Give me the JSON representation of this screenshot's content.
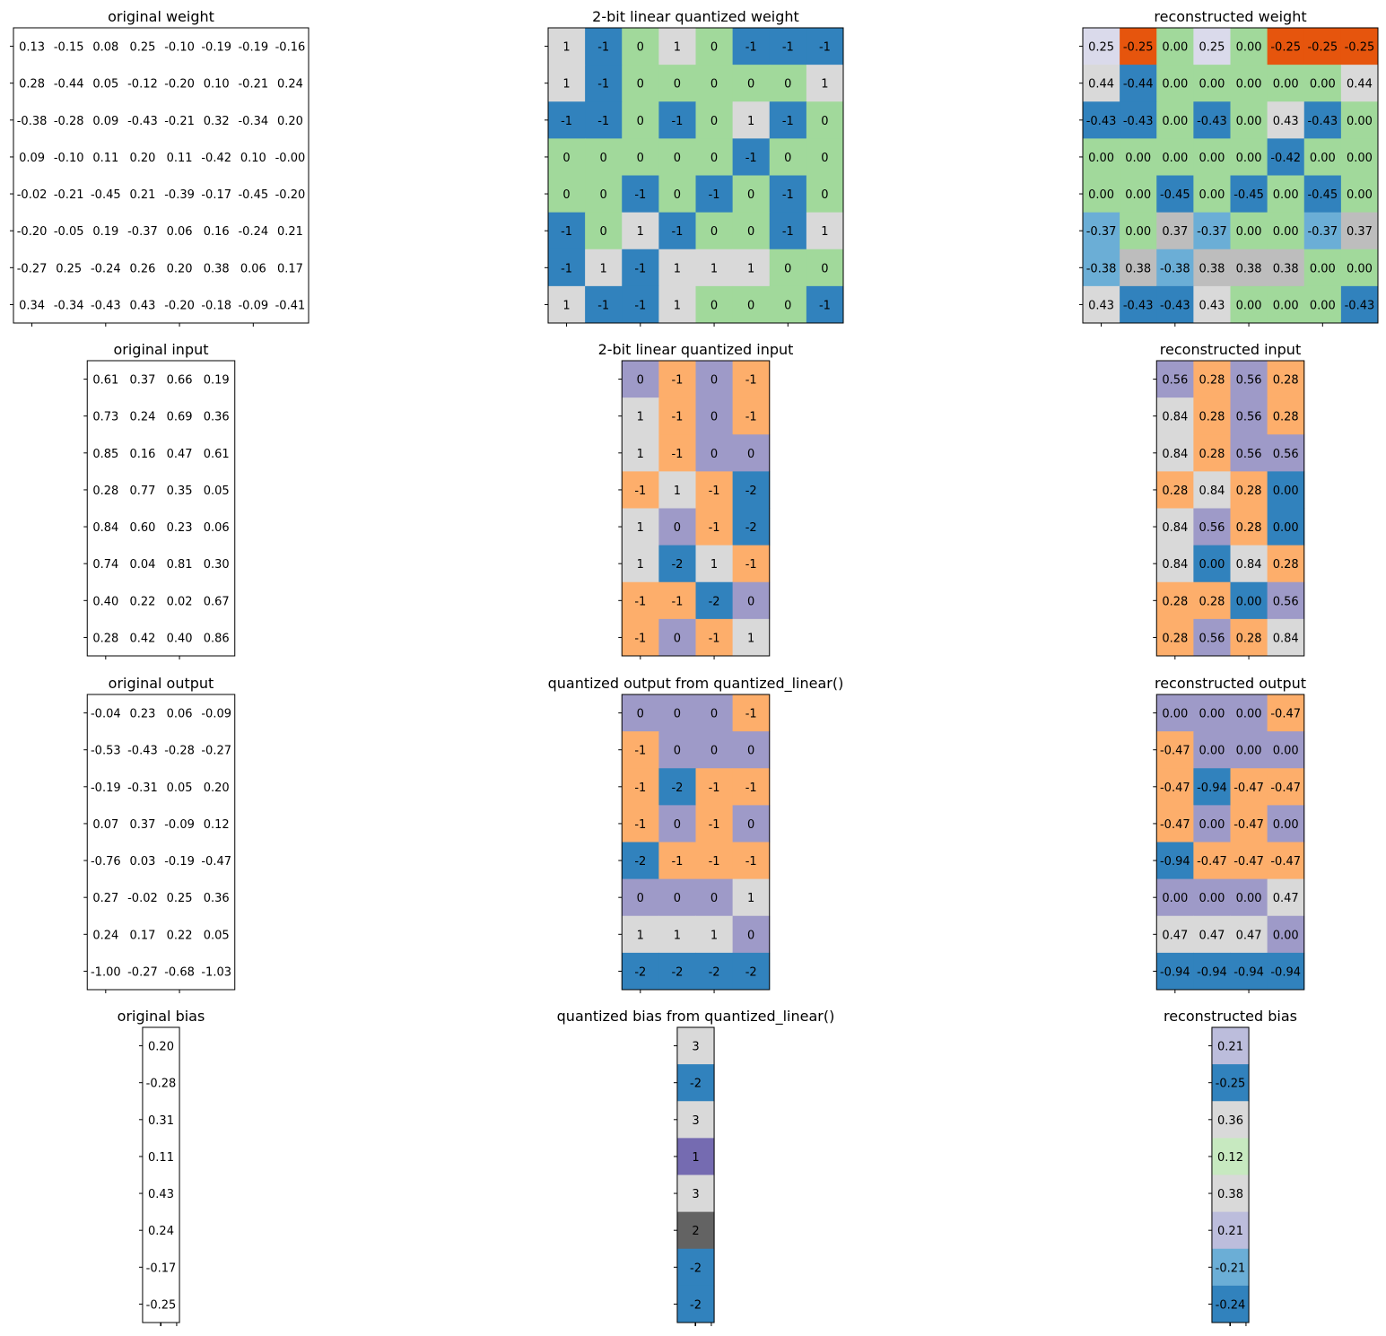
{
  "chart_data": [
    {
      "type": "heatmap",
      "id": "original-weight",
      "title": "original weight",
      "colored": false,
      "values": [
        [
          "0.13",
          "-0.15",
          "0.08",
          "0.25",
          "-0.10",
          "-0.19",
          "-0.19",
          "-0.16"
        ],
        [
          "0.28",
          "-0.44",
          "0.05",
          "-0.12",
          "-0.20",
          "0.10",
          "-0.21",
          "0.24"
        ],
        [
          "-0.38",
          "-0.28",
          "0.09",
          "-0.43",
          "-0.21",
          "0.32",
          "-0.34",
          "0.20"
        ],
        [
          "0.09",
          "-0.10",
          "0.11",
          "0.20",
          "0.11",
          "-0.42",
          "0.10",
          "-0.00"
        ],
        [
          "-0.02",
          "-0.21",
          "-0.45",
          "0.21",
          "-0.39",
          "-0.17",
          "-0.45",
          "-0.20"
        ],
        [
          "-0.20",
          "-0.05",
          "0.19",
          "-0.37",
          "0.06",
          "0.16",
          "-0.24",
          "0.21"
        ],
        [
          "-0.27",
          "0.25",
          "-0.24",
          "0.26",
          "0.20",
          "0.38",
          "0.06",
          "0.17"
        ],
        [
          "0.34",
          "-0.34",
          "-0.43",
          "0.43",
          "-0.20",
          "-0.18",
          "-0.09",
          "-0.41"
        ]
      ]
    },
    {
      "type": "heatmap",
      "id": "quantized-weight",
      "title": "2-bit linear quantized weight",
      "colored": true,
      "values": [
        [
          "1",
          "-1",
          "0",
          "1",
          "0",
          "-1",
          "-1",
          "-1"
        ],
        [
          "1",
          "-1",
          "0",
          "0",
          "0",
          "0",
          "0",
          "1"
        ],
        [
          "-1",
          "-1",
          "0",
          "-1",
          "0",
          "1",
          "-1",
          "0"
        ],
        [
          "0",
          "0",
          "0",
          "0",
          "0",
          "-1",
          "0",
          "0"
        ],
        [
          "0",
          "0",
          "-1",
          "0",
          "-1",
          "0",
          "-1",
          "0"
        ],
        [
          "-1",
          "0",
          "1",
          "-1",
          "0",
          "0",
          "-1",
          "1"
        ],
        [
          "-1",
          "1",
          "-1",
          "1",
          "1",
          "1",
          "0",
          "0"
        ],
        [
          "1",
          "-1",
          "-1",
          "1",
          "0",
          "0",
          "0",
          "-1"
        ]
      ]
    },
    {
      "type": "heatmap",
      "id": "reconstructed-weight",
      "title": "reconstructed weight",
      "colored": true,
      "values": [
        [
          "0.25",
          "-0.25",
          "0.00",
          "0.25",
          "0.00",
          "-0.25",
          "-0.25",
          "-0.25"
        ],
        [
          "0.44",
          "-0.44",
          "0.00",
          "0.00",
          "0.00",
          "0.00",
          "0.00",
          "0.44"
        ],
        [
          "-0.43",
          "-0.43",
          "0.00",
          "-0.43",
          "0.00",
          "0.43",
          "-0.43",
          "0.00"
        ],
        [
          "0.00",
          "0.00",
          "0.00",
          "0.00",
          "0.00",
          "-0.42",
          "0.00",
          "0.00"
        ],
        [
          "0.00",
          "0.00",
          "-0.45",
          "0.00",
          "-0.45",
          "0.00",
          "-0.45",
          "0.00"
        ],
        [
          "-0.37",
          "0.00",
          "0.37",
          "-0.37",
          "0.00",
          "0.00",
          "-0.37",
          "0.37"
        ],
        [
          "-0.38",
          "0.38",
          "-0.38",
          "0.38",
          "0.38",
          "0.38",
          "0.00",
          "0.00"
        ],
        [
          "0.43",
          "-0.43",
          "-0.43",
          "0.43",
          "0.00",
          "0.00",
          "0.00",
          "-0.43"
        ]
      ]
    },
    {
      "type": "heatmap",
      "id": "original-input",
      "title": "original input",
      "colored": false,
      "values": [
        [
          "0.61",
          "0.37",
          "0.66",
          "0.19"
        ],
        [
          "0.73",
          "0.24",
          "0.69",
          "0.36"
        ],
        [
          "0.85",
          "0.16",
          "0.47",
          "0.61"
        ],
        [
          "0.28",
          "0.77",
          "0.35",
          "0.05"
        ],
        [
          "0.84",
          "0.60",
          "0.23",
          "0.06"
        ],
        [
          "0.74",
          "0.04",
          "0.81",
          "0.30"
        ],
        [
          "0.40",
          "0.22",
          "0.02",
          "0.67"
        ],
        [
          "0.28",
          "0.42",
          "0.40",
          "0.86"
        ]
      ]
    },
    {
      "type": "heatmap",
      "id": "quantized-input",
      "title": "2-bit linear quantized input",
      "colored": true,
      "values": [
        [
          "0",
          "-1",
          "0",
          "-1"
        ],
        [
          "1",
          "-1",
          "0",
          "-1"
        ],
        [
          "1",
          "-1",
          "0",
          "0"
        ],
        [
          "-1",
          "1",
          "-1",
          "-2"
        ],
        [
          "1",
          "0",
          "-1",
          "-2"
        ],
        [
          "1",
          "-2",
          "1",
          "-1"
        ],
        [
          "-1",
          "-1",
          "-2",
          "0"
        ],
        [
          "-1",
          "0",
          "-1",
          "1"
        ]
      ]
    },
    {
      "type": "heatmap",
      "id": "reconstructed-input",
      "title": "reconstructed input",
      "colored": true,
      "values": [
        [
          "0.56",
          "0.28",
          "0.56",
          "0.28"
        ],
        [
          "0.84",
          "0.28",
          "0.56",
          "0.28"
        ],
        [
          "0.84",
          "0.28",
          "0.56",
          "0.56"
        ],
        [
          "0.28",
          "0.84",
          "0.28",
          "0.00"
        ],
        [
          "0.84",
          "0.56",
          "0.28",
          "0.00"
        ],
        [
          "0.84",
          "0.00",
          "0.84",
          "0.28"
        ],
        [
          "0.28",
          "0.28",
          "0.00",
          "0.56"
        ],
        [
          "0.28",
          "0.56",
          "0.28",
          "0.84"
        ]
      ]
    },
    {
      "type": "heatmap",
      "id": "original-output",
      "title": "original output",
      "colored": false,
      "values": [
        [
          "-0.04",
          "0.23",
          "0.06",
          "-0.09"
        ],
        [
          "-0.53",
          "-0.43",
          "-0.28",
          "-0.27"
        ],
        [
          "-0.19",
          "-0.31",
          "0.05",
          "0.20"
        ],
        [
          "0.07",
          "0.37",
          "-0.09",
          "0.12"
        ],
        [
          "-0.76",
          "0.03",
          "-0.19",
          "-0.47"
        ],
        [
          "0.27",
          "-0.02",
          "0.25",
          "0.36"
        ],
        [
          "0.24",
          "0.17",
          "0.22",
          "0.05"
        ],
        [
          "-1.00",
          "-0.27",
          "-0.68",
          "-1.03"
        ]
      ]
    },
    {
      "type": "heatmap",
      "id": "quantized-output",
      "title": "quantized output from quantized_linear()",
      "colored": true,
      "values": [
        [
          "0",
          "0",
          "0",
          "-1"
        ],
        [
          "-1",
          "0",
          "0",
          "0"
        ],
        [
          "-1",
          "-2",
          "-1",
          "-1"
        ],
        [
          "-1",
          "0",
          "-1",
          "0"
        ],
        [
          "-2",
          "-1",
          "-1",
          "-1"
        ],
        [
          "0",
          "0",
          "0",
          "1"
        ],
        [
          "1",
          "1",
          "1",
          "0"
        ],
        [
          "-2",
          "-2",
          "-2",
          "-2"
        ]
      ]
    },
    {
      "type": "heatmap",
      "id": "reconstructed-output",
      "title": "reconstructed output",
      "colored": true,
      "values": [
        [
          "0.00",
          "0.00",
          "0.00",
          "-0.47"
        ],
        [
          "-0.47",
          "0.00",
          "0.00",
          "0.00"
        ],
        [
          "-0.47",
          "-0.94",
          "-0.47",
          "-0.47"
        ],
        [
          "-0.47",
          "0.00",
          "-0.47",
          "0.00"
        ],
        [
          "-0.94",
          "-0.47",
          "-0.47",
          "-0.47"
        ],
        [
          "0.00",
          "0.00",
          "0.00",
          "0.47"
        ],
        [
          "0.47",
          "0.47",
          "0.47",
          "0.00"
        ],
        [
          "-0.94",
          "-0.94",
          "-0.94",
          "-0.94"
        ]
      ]
    },
    {
      "type": "heatmap",
      "id": "original-bias",
      "title": "original bias",
      "colored": false,
      "values": [
        [
          "0.20"
        ],
        [
          "-0.28"
        ],
        [
          "0.31"
        ],
        [
          "0.11"
        ],
        [
          "0.43"
        ],
        [
          "0.24"
        ],
        [
          "-0.17"
        ],
        [
          "-0.25"
        ]
      ]
    },
    {
      "type": "heatmap",
      "id": "quantized-bias",
      "title": "quantized bias from quantized_linear()",
      "colored": true,
      "values": [
        [
          "3"
        ],
        [
          "-2"
        ],
        [
          "3"
        ],
        [
          "1"
        ],
        [
          "3"
        ],
        [
          "2"
        ],
        [
          "-2"
        ],
        [
          "-2"
        ]
      ]
    },
    {
      "type": "heatmap",
      "id": "reconstructed-bias",
      "title": "reconstructed bias",
      "colored": true,
      "values": [
        [
          "0.21"
        ],
        [
          "-0.25"
        ],
        [
          "0.36"
        ],
        [
          "0.12"
        ],
        [
          "0.38"
        ],
        [
          "0.21"
        ],
        [
          "-0.21"
        ],
        [
          "-0.24"
        ]
      ]
    }
  ],
  "colormap": [
    "#3182bd",
    "#6baed6",
    "#9ecae1",
    "#c6dbef",
    "#e6550d",
    "#fd8d3c",
    "#fdae6b",
    "#fdd0a2",
    "#31a354",
    "#74c476",
    "#a1d99b",
    "#c7e9c0",
    "#756bb1",
    "#9e9ac8",
    "#bcbddc",
    "#dadaeb",
    "#636363",
    "#969696",
    "#bdbdbd",
    "#d9d9d9"
  ]
}
